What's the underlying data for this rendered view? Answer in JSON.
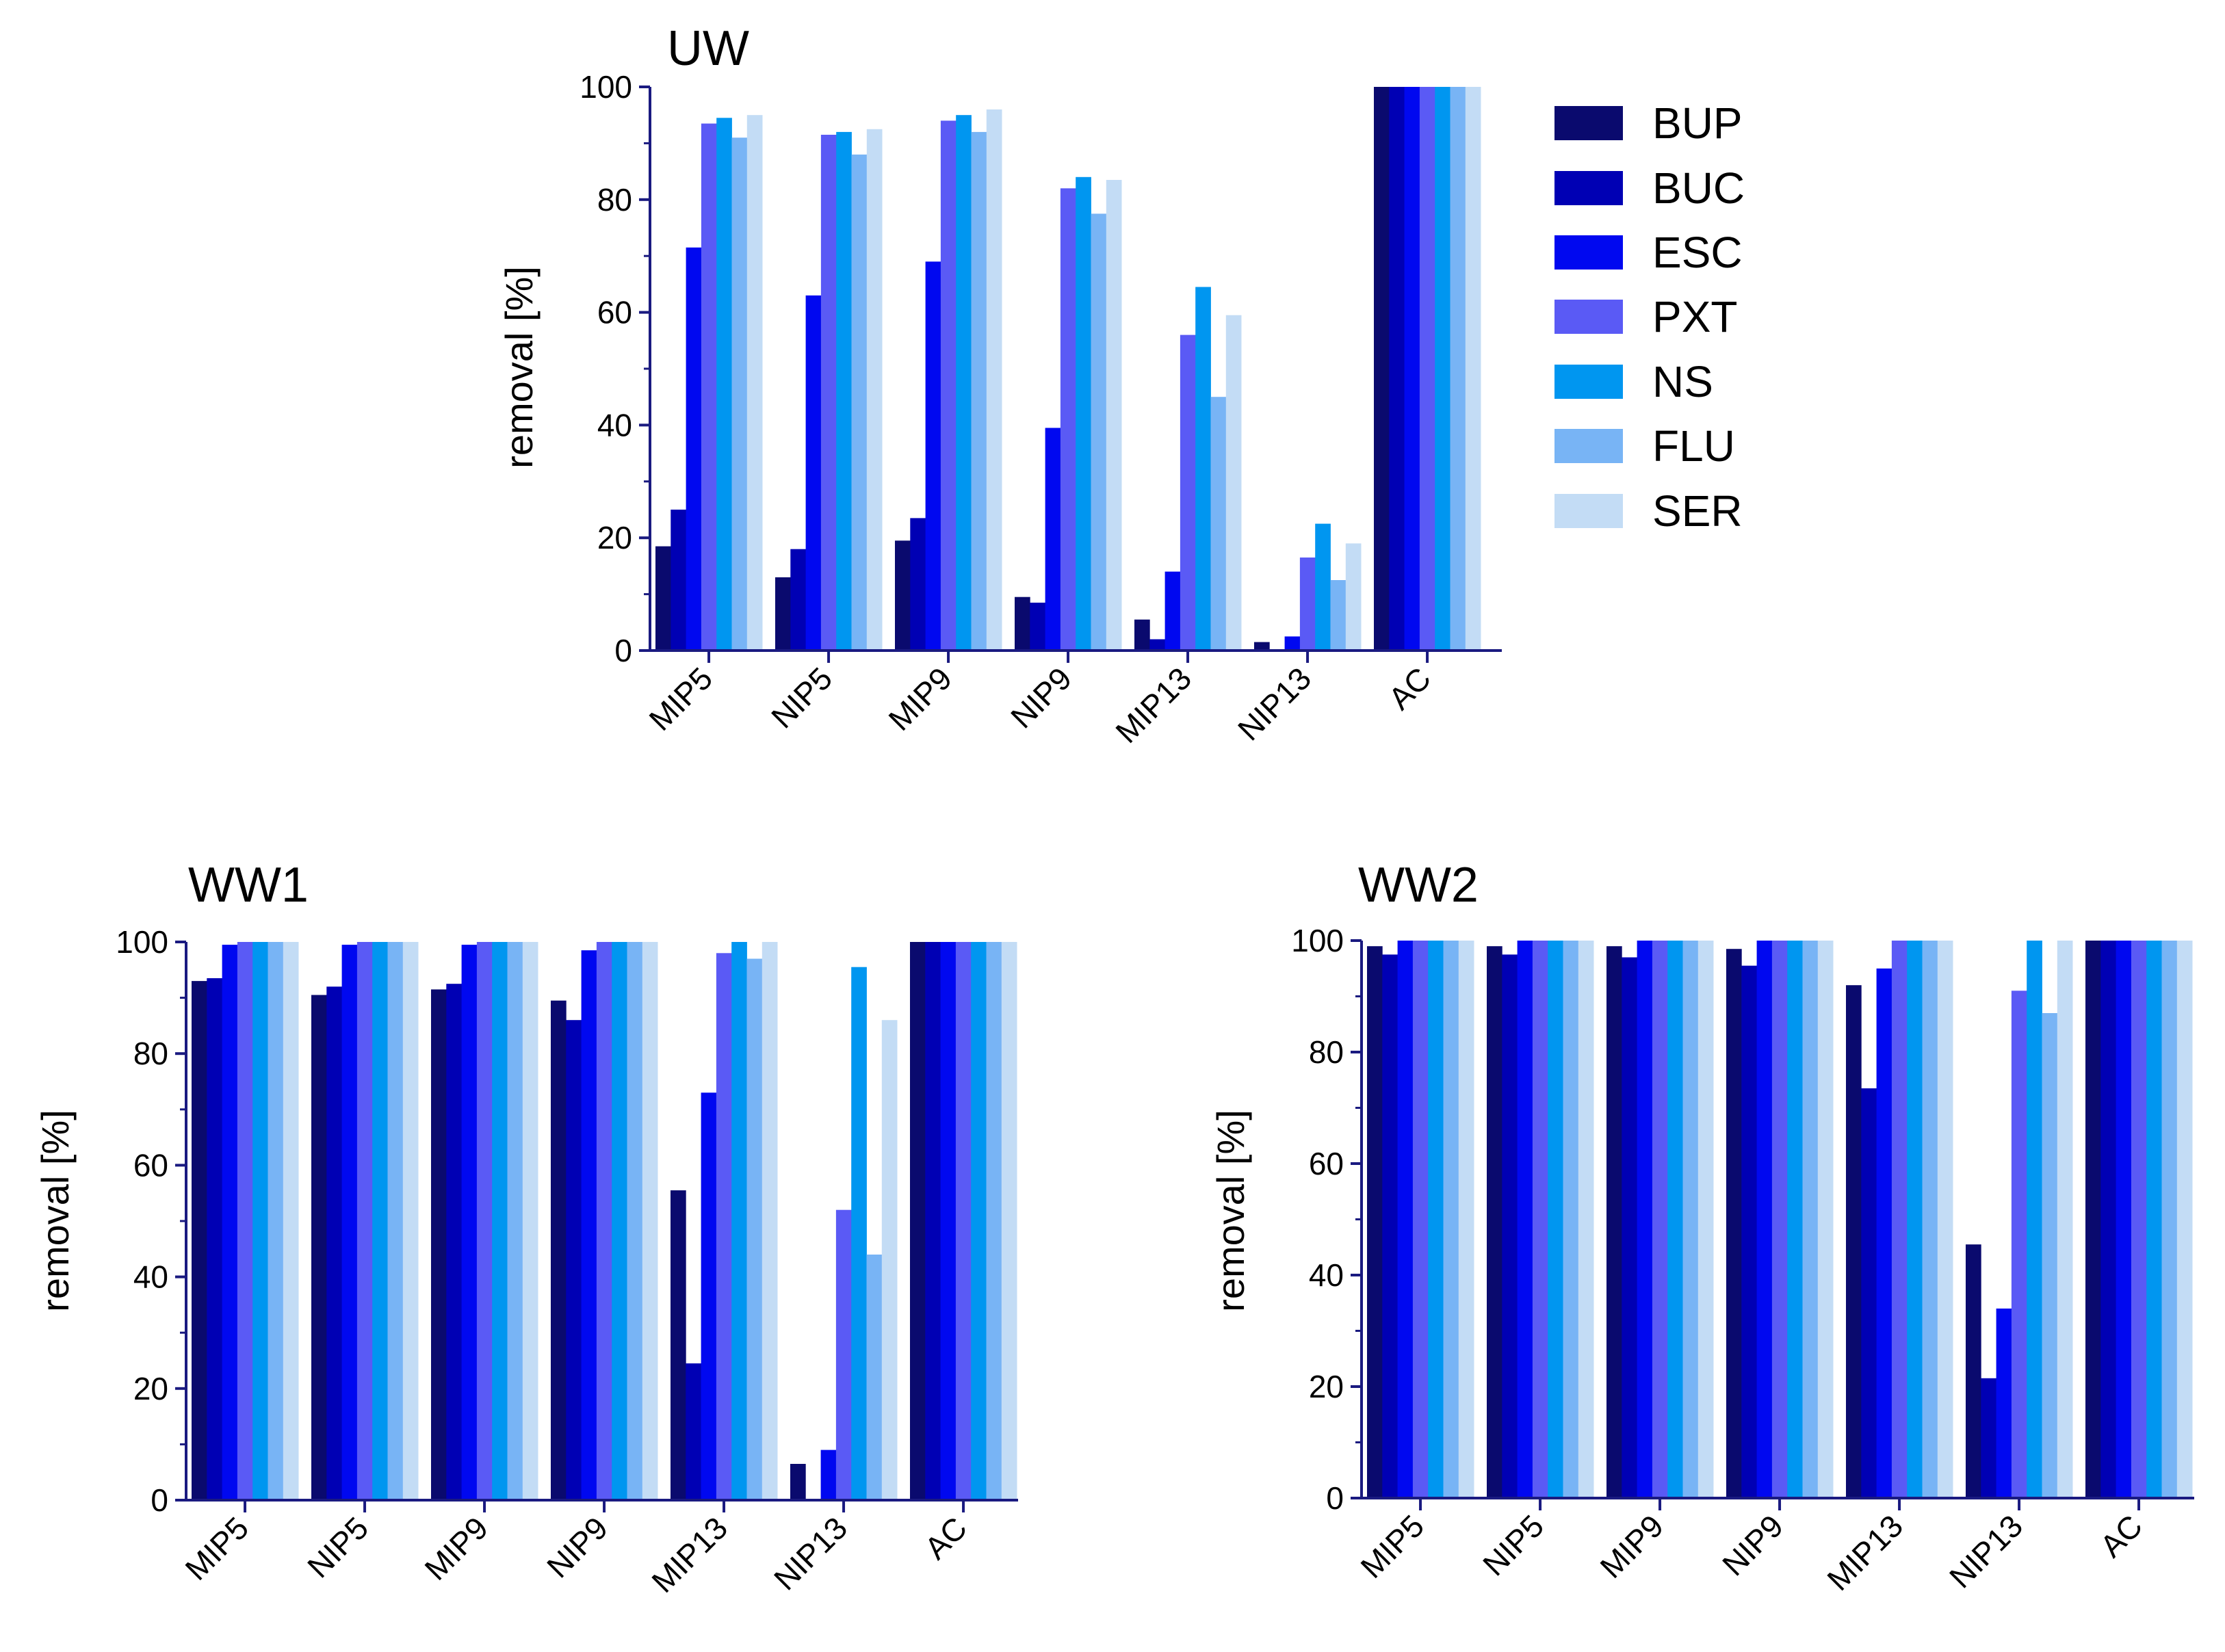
{
  "legend": {
    "entries": [
      "BUP",
      "BUC",
      "ESC",
      "PXT",
      "NS",
      "FLU",
      "SER"
    ],
    "colors": [
      "#0a0a6e",
      "#0000b4",
      "#0008f0",
      "#5a5af5",
      "#0096f0",
      "#78b4f5",
      "#c3dcf5"
    ]
  },
  "chart_data": [
    {
      "type": "bar",
      "title": "UW",
      "ylabel": "removal [%]",
      "xlabel": "",
      "ylim": [
        0,
        100
      ],
      "yticks": [
        "0",
        "20",
        "40",
        "60",
        "80",
        "100"
      ],
      "categories": [
        "MIP5",
        "NIP5",
        "MIP9",
        "NIP9",
        "MIP13",
        "NIP13",
        "AC"
      ],
      "series": [
        {
          "name": "BUP",
          "values": [
            18.5,
            13,
            19.5,
            9.5,
            5.5,
            1.5,
            100
          ]
        },
        {
          "name": "BUC",
          "values": [
            25,
            18,
            23.5,
            8.5,
            2,
            0,
            100
          ]
        },
        {
          "name": "ESC",
          "values": [
            71.5,
            63,
            69,
            39.5,
            14,
            2.5,
            100
          ]
        },
        {
          "name": "PXT",
          "values": [
            93.5,
            91.5,
            94,
            82,
            56,
            16.5,
            100
          ]
        },
        {
          "name": "NS",
          "values": [
            94.5,
            92,
            95,
            84,
            64.5,
            22.5,
            100
          ]
        },
        {
          "name": "FLU",
          "values": [
            91,
            88,
            92,
            77.5,
            45,
            12.5,
            100
          ]
        },
        {
          "name": "SER",
          "values": [
            95,
            92.5,
            96,
            83.5,
            59.5,
            19,
            100
          ]
        }
      ]
    },
    {
      "type": "bar",
      "title": "WW1",
      "ylabel": "removal [%]",
      "xlabel": "",
      "ylim": [
        0,
        100
      ],
      "yticks": [
        "0",
        "20",
        "40",
        "60",
        "80",
        "100"
      ],
      "categories": [
        "MIP5",
        "NIP5",
        "MIP9",
        "NIP9",
        "MIP13",
        "NIP13",
        "AC"
      ],
      "series": [
        {
          "name": "BUP",
          "values": [
            93,
            90.5,
            91.5,
            89.5,
            55.5,
            6.5,
            100
          ]
        },
        {
          "name": "BUC",
          "values": [
            93.5,
            92,
            92.5,
            86,
            24.5,
            0,
            100
          ]
        },
        {
          "name": "ESC",
          "values": [
            99.5,
            99.5,
            99.5,
            98.5,
            73,
            9,
            100
          ]
        },
        {
          "name": "PXT",
          "values": [
            100,
            100,
            100,
            100,
            98,
            52,
            100
          ]
        },
        {
          "name": "NS",
          "values": [
            100,
            100,
            100,
            100,
            100,
            95.5,
            100
          ]
        },
        {
          "name": "FLU",
          "values": [
            100,
            100,
            100,
            100,
            97,
            44,
            100
          ]
        },
        {
          "name": "SER",
          "values": [
            100,
            100,
            100,
            100,
            100,
            86,
            100
          ]
        }
      ]
    },
    {
      "type": "bar",
      "title": "WW2",
      "ylabel": "removal [%]",
      "xlabel": "",
      "ylim": [
        0,
        100
      ],
      "yticks": [
        "0",
        "20",
        "40",
        "60",
        "80",
        "100"
      ],
      "categories": [
        "MIP5",
        "NIP5",
        "MIP9",
        "NIP9",
        "MIP13",
        "NIP13",
        "AC"
      ],
      "series": [
        {
          "name": "BUP",
          "values": [
            99,
            99,
            99,
            98.5,
            92,
            45.5,
            100
          ]
        },
        {
          "name": "BUC",
          "values": [
            97.5,
            97.5,
            97,
            95.5,
            73.5,
            21.5,
            100
          ]
        },
        {
          "name": "ESC",
          "values": [
            100,
            100,
            100,
            100,
            95,
            34,
            100
          ]
        },
        {
          "name": "PXT",
          "values": [
            100,
            100,
            100,
            100,
            100,
            91,
            100
          ]
        },
        {
          "name": "NS",
          "values": [
            100,
            100,
            100,
            100,
            100,
            100,
            100
          ]
        },
        {
          "name": "FLU",
          "values": [
            100,
            100,
            100,
            100,
            100,
            87,
            100
          ]
        },
        {
          "name": "SER",
          "values": [
            100,
            100,
            100,
            100,
            100,
            100,
            100
          ]
        }
      ]
    }
  ]
}
